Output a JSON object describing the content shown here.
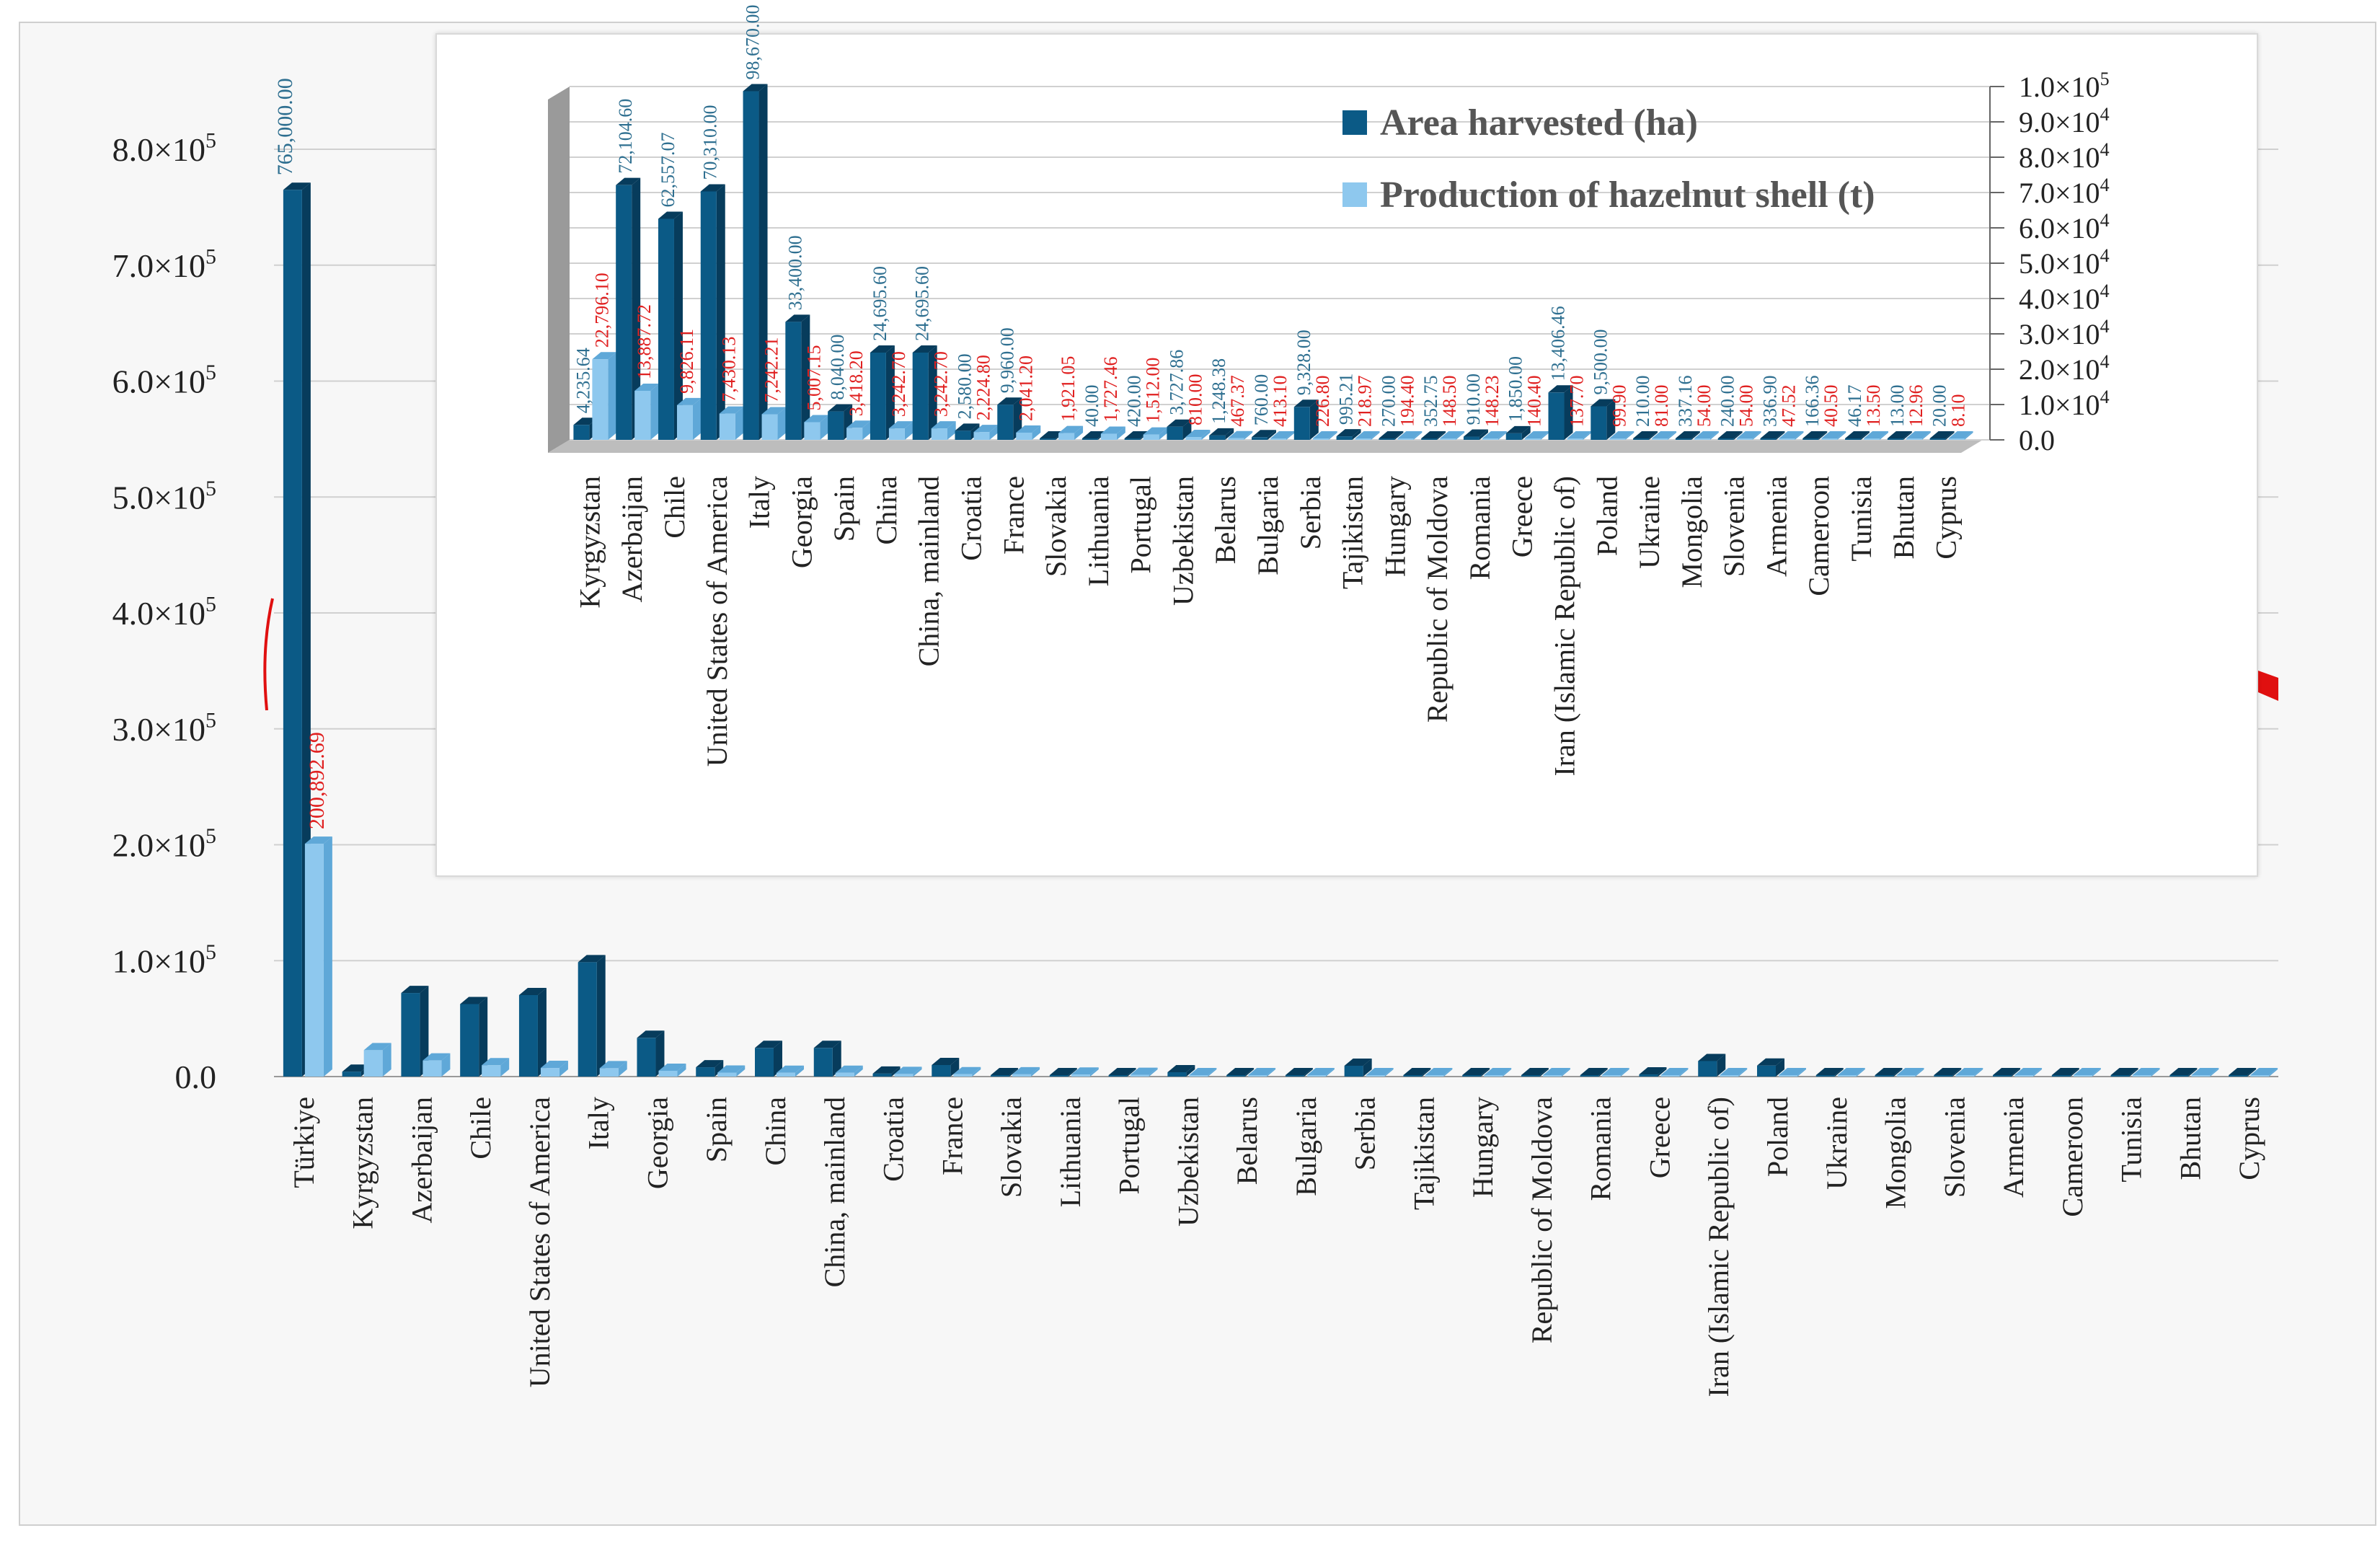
{
  "colors": {
    "area": "#0b5a86",
    "area_side": "#073c5c",
    "shell": "#8ec8ee",
    "shell_side": "#5fa8d8",
    "label_area": "#2e6f90",
    "label_shell": "#e02020"
  },
  "legend": {
    "area": "Area harvested (ha)",
    "shell": "Production of hazelnut shell (t)"
  },
  "chart_data": [
    {
      "type": "bar",
      "title": "",
      "xlabel": "",
      "ylabel": "",
      "ylim": [
        0,
        800000
      ],
      "y_ticks": [
        "0.0",
        "1.0×10",
        "2.0×10",
        "3.0×10",
        "4.0×10",
        "5.0×10",
        "6.0×10",
        "7.0×10",
        "8.0×10"
      ],
      "y_tick_exponent": "5",
      "categories": [
        "Türkiye",
        "Kyrgyzstan",
        "Azerbaijan",
        "Chile",
        "United States of America",
        "Italy",
        "Georgia",
        "Spain",
        "China",
        "China, mainland",
        "Croatia",
        "France",
        "Slovakia",
        "Lithuania",
        "Portugal",
        "Uzbekistan",
        "Belarus",
        "Bulgaria",
        "Serbia",
        "Tajikistan",
        "Hungary",
        "Republic of Moldova",
        "Romania",
        "Greece",
        "Iran (Islamic Republic of)",
        "Poland",
        "Ukraine",
        "Mongolia",
        "Slovenia",
        "Armenia",
        "Cameroon",
        "Tunisia",
        "Bhutan",
        "Cyprus"
      ],
      "series": [
        {
          "name": "Area harvested (ha)",
          "values": [
            765000,
            4235.64,
            72104.6,
            62557.07,
            70310,
            98670,
            33400,
            8040,
            24695.6,
            24695.6,
            2580,
            9960,
            0,
            40,
            420,
            3727.86,
            1248.38,
            760,
            9328,
            995.21,
            270,
            352.75,
            910,
            1850,
            13406.46,
            9500,
            210,
            337.16,
            240,
            336.9,
            166.36,
            46.17,
            13,
            20
          ]
        },
        {
          "name": "Production of hazelnut shell (t)",
          "values": [
            200892.69,
            22796.1,
            13887.72,
            9826.11,
            7430.13,
            7242.21,
            5007.15,
            3418.2,
            3242.7,
            3242.7,
            2224.8,
            2041.2,
            1921.05,
            1727.46,
            1512,
            810,
            467.37,
            413.1,
            226.8,
            218.97,
            194.4,
            148.5,
            148.23,
            140.4,
            137.7,
            99.9,
            81,
            54,
            54,
            47.52,
            40.5,
            13.5,
            12.96,
            8.1
          ]
        }
      ],
      "data_labels": {
        "area": [
          "765,000.00"
        ],
        "shell": [
          "200,892.69"
        ]
      }
    },
    {
      "type": "bar",
      "title": "",
      "xlabel": "",
      "ylabel": "",
      "ylim": [
        0,
        100000
      ],
      "y_ticks": [
        "0.0",
        "1.0×10",
        "2.0×10",
        "3.0×10",
        "4.0×10",
        "5.0×10",
        "6.0×10",
        "7.0×10",
        "8.0×10",
        "9.0×10",
        "1.0×10"
      ],
      "y_tick_exponents": [
        "",
        "4",
        "4",
        "4",
        "4",
        "4",
        "4",
        "4",
        "4",
        "4",
        "5"
      ],
      "legend_position": "top",
      "categories": [
        "Kyrgyzstan",
        "Azerbaijan",
        "Chile",
        "United States of America",
        "Italy",
        "Georgia",
        "Spain",
        "China",
        "China, mainland",
        "Croatia",
        "France",
        "Slovakia",
        "Lithuania",
        "Portugal",
        "Uzbekistan",
        "Belarus",
        "Bulgaria",
        "Serbia",
        "Tajikistan",
        "Hungary",
        "Republic of Moldova",
        "Romania",
        "Greece",
        "Iran (Islamic Republic of)",
        "Poland",
        "Ukraine",
        "Mongolia",
        "Slovenia",
        "Armenia",
        "Cameroon",
        "Tunisia",
        "Bhutan",
        "Cyprus"
      ],
      "series": [
        {
          "name": "Area harvested (ha)",
          "values": [
            4235.64,
            72104.6,
            62557.07,
            70310,
            98670,
            33400,
            8040,
            24695.6,
            24695.6,
            2580,
            9960,
            0,
            40,
            420,
            3727.86,
            1248.38,
            760,
            9328,
            995.21,
            270,
            352.75,
            910,
            1850,
            13406.46,
            9500,
            210,
            337.16,
            240,
            336.9,
            166.36,
            46.17,
            13,
            20
          ]
        },
        {
          "name": "Production of hazelnut shell (t)",
          "values": [
            22796.1,
            13887.72,
            9826.11,
            7430.13,
            7242.21,
            5007.15,
            3418.2,
            3242.7,
            3242.7,
            2224.8,
            2041.2,
            1921.05,
            1727.46,
            1512,
            810,
            467.37,
            413.1,
            226.8,
            218.97,
            194.4,
            148.5,
            148.23,
            140.4,
            137.7,
            99.9,
            81,
            54,
            54,
            47.52,
            40.5,
            13.5,
            12.96,
            8.1
          ]
        }
      ],
      "data_labels": {
        "area": [
          "4,235.64",
          "72,104.60",
          "62,557.07",
          "70,310.00",
          "98,670.00",
          "33,400.00",
          "8,040.00",
          "24,695.60",
          "24,695.60",
          "2,580.00",
          "9,960.00",
          "",
          "40.00",
          "420.00",
          "3,727.86",
          "1,248.38",
          "760.00",
          "9,328.00",
          "995.21",
          "270.00",
          "352.75",
          "910.00",
          "1,850.00",
          "13,406.46",
          "9,500.00",
          "210.00",
          "337.16",
          "240.00",
          "336.90",
          "166.36",
          "46.17",
          "13.00",
          "20.00"
        ],
        "shell": [
          "22,796.10",
          "13,887.72",
          "9,826.11",
          "7,430.13",
          "7,242.21",
          "5,007.15",
          "3,418.20",
          "3,242.70",
          "3,242.70",
          "2,224.80",
          "2,041.20",
          "1,921.05",
          "1,727.46",
          "1,512.00",
          "810.00",
          "467.37",
          "413.10",
          "226.80",
          "218.97",
          "194.40",
          "148.50",
          "148.23",
          "140.40",
          "137.70",
          "99.90",
          "81.00",
          "54.00",
          "54.00",
          "47.52",
          "40.50",
          "13.50",
          "12.96",
          "8.10"
        ]
      }
    }
  ]
}
